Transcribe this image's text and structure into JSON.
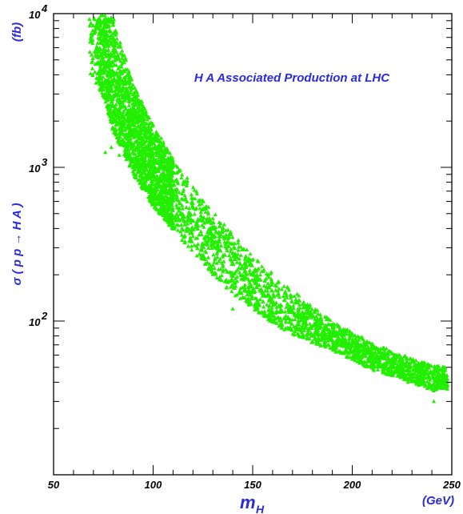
{
  "chart_data": {
    "type": "scatter",
    "title": "H A Associated Production at LHC",
    "xlabel": "m",
    "xlabel_sub": "H",
    "xunit": "(GeV)",
    "ylabel": "σ ( p p → H A )",
    "yunit": "(fb)",
    "xlim": [
      50,
      250
    ],
    "ylim": [
      10,
      10000
    ],
    "yscale": "log",
    "x_ticks": [
      "50",
      "100",
      "150",
      "200",
      "250"
    ],
    "y_ticks": [
      {
        "base": "10",
        "exp": "2",
        "value": 100
      },
      {
        "base": "10",
        "exp": "3",
        "value": 1000
      },
      {
        "base": "10",
        "exp": "4",
        "value": 10000
      }
    ],
    "grid": false,
    "marker": "triangle",
    "color": "#22ee00",
    "band": {
      "x": [
        68,
        75,
        80,
        90,
        100,
        110,
        120,
        130,
        140,
        150,
        160,
        170,
        180,
        190,
        200,
        210,
        220,
        230,
        240,
        248
      ],
      "y_low": [
        4100,
        2900,
        1700,
        900,
        560,
        390,
        280,
        200,
        150,
        120,
        97,
        82,
        72,
        64,
        56,
        48,
        44,
        40,
        35,
        36
      ],
      "y_high": [
        9500,
        9800,
        9500,
        3500,
        1900,
        1150,
        760,
        520,
        370,
        270,
        205,
        160,
        125,
        100,
        85,
        72,
        64,
        57,
        52,
        50
      ]
    },
    "outliers": [
      {
        "x": 76,
        "y": 1250
      },
      {
        "x": 79,
        "y": 1350
      },
      {
        "x": 83,
        "y": 1200
      },
      {
        "x": 140,
        "y": 120
      },
      {
        "x": 195,
        "y": 62
      },
      {
        "x": 228,
        "y": 40
      },
      {
        "x": 241,
        "y": 30
      }
    ]
  }
}
